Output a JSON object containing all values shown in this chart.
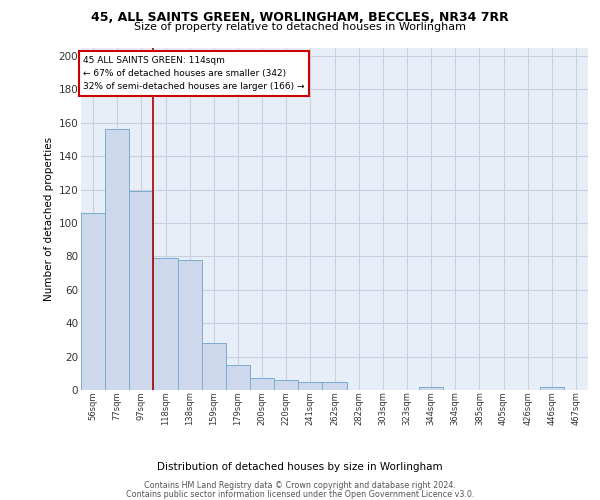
{
  "title_line1": "45, ALL SAINTS GREEN, WORLINGHAM, BECCLES, NR34 7RR",
  "title_line2": "Size of property relative to detached houses in Worlingham",
  "xlabel": "Distribution of detached houses by size in Worlingham",
  "ylabel": "Number of detached properties",
  "bar_color": "#cdd8ed",
  "bar_edgecolor": "#7aabcf",
  "grid_color": "#c8d0df",
  "bg_color": "#e8eef8",
  "categories": [
    "56sqm",
    "77sqm",
    "97sqm",
    "118sqm",
    "138sqm",
    "159sqm",
    "179sqm",
    "200sqm",
    "220sqm",
    "241sqm",
    "262sqm",
    "282sqm",
    "303sqm",
    "323sqm",
    "344sqm",
    "364sqm",
    "385sqm",
    "405sqm",
    "426sqm",
    "446sqm",
    "467sqm"
  ],
  "values": [
    106,
    156,
    119,
    79,
    78,
    28,
    15,
    7,
    6,
    5,
    5,
    0,
    0,
    0,
    2,
    0,
    0,
    0,
    0,
    2,
    0
  ],
  "vline_x": 2.5,
  "vline_color": "#aa0000",
  "annotation_text": "45 ALL SAINTS GREEN: 114sqm\n← 67% of detached houses are smaller (342)\n32% of semi-detached houses are larger (166) →",
  "annotation_box_color": "white",
  "annotation_box_edgecolor": "#cc0000",
  "ylim": [
    0,
    205
  ],
  "yticks": [
    0,
    20,
    40,
    60,
    80,
    100,
    120,
    140,
    160,
    180,
    200
  ],
  "footer_line1": "Contains HM Land Registry data © Crown copyright and database right 2024.",
  "footer_line2": "Contains public sector information licensed under the Open Government Licence v3.0."
}
